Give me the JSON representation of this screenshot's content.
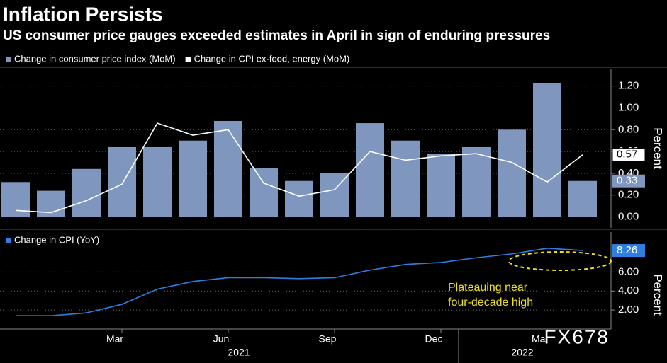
{
  "chart_data": [
    {
      "type": "bar-line",
      "title": "Inflation Persists",
      "subtitle": "US consumer price gauges exceeded estimates in April in sign of enduring pressures",
      "categories": [
        null,
        null,
        null,
        "Mar",
        null,
        null,
        "Jun",
        null,
        null,
        "Sep",
        null,
        null,
        "Dec",
        null,
        null,
        "Mar",
        null
      ],
      "years": [
        "2021",
        "2022"
      ],
      "y_label": "Percent",
      "ylim": [
        -0.1,
        1.36
      ],
      "yticks": [
        {
          "value": 0,
          "label": "0.00"
        },
        {
          "value": 0.2,
          "label": "0.20"
        },
        {
          "value": 0.4,
          "label": "0.40"
        },
        {
          "value": 0.6,
          "label": "0.60"
        },
        {
          "value": 0.8,
          "label": "0.80"
        },
        {
          "value": 1.0,
          "label": "1.00"
        },
        {
          "value": 1.2,
          "label": "1.20"
        }
      ],
      "grid": true,
      "series": [
        {
          "name": "Change in consumer price index (MoM)",
          "kind": "bar",
          "color": "#7f96bf",
          "values": [
            0.32,
            0.24,
            0.44,
            0.64,
            0.64,
            0.7,
            0.88,
            0.45,
            0.33,
            0.4,
            0.86,
            0.7,
            0.58,
            0.64,
            0.8,
            1.23,
            0.33
          ],
          "value_labels": [
            null,
            null,
            null,
            null,
            null,
            null,
            null,
            null,
            null,
            null,
            null,
            null,
            null,
            null,
            null,
            null,
            "0.33"
          ]
        },
        {
          "name": "Change in CPI ex-food, energy (MoM)",
          "kind": "line",
          "color": "#ffffff",
          "values": [
            0.06,
            0.04,
            0.15,
            0.3,
            0.86,
            0.75,
            0.8,
            0.31,
            0.19,
            0.25,
            0.6,
            0.52,
            0.56,
            0.58,
            0.5,
            0.32,
            0.57
          ],
          "value_labels": [
            null,
            null,
            null,
            null,
            null,
            null,
            null,
            null,
            null,
            null,
            null,
            null,
            null,
            null,
            null,
            null,
            "0.57"
          ]
        }
      ]
    },
    {
      "type": "line",
      "y_label": "Percent",
      "ylim": [
        0,
        10.2
      ],
      "yticks": [
        {
          "value": 2,
          "label": "2.00"
        },
        {
          "value": 4,
          "label": "4.00"
        },
        {
          "value": 6,
          "label": "6.00"
        }
      ],
      "grid": true,
      "annotation": [
        "Plateauing near",
        "four-decade high"
      ],
      "series": [
        {
          "name": "Change in CPI (YoY)",
          "color": "#2f7fe0",
          "values": [
            1.4,
            1.4,
            1.7,
            2.6,
            4.2,
            5.0,
            5.4,
            5.4,
            5.3,
            5.4,
            6.2,
            6.8,
            7.0,
            7.5,
            7.9,
            8.5,
            8.26
          ],
          "value_labels": [
            null,
            null,
            null,
            null,
            null,
            null,
            null,
            null,
            null,
            null,
            null,
            null,
            null,
            null,
            null,
            null,
            "8.26"
          ]
        }
      ]
    }
  ],
  "watermark": "FX678"
}
